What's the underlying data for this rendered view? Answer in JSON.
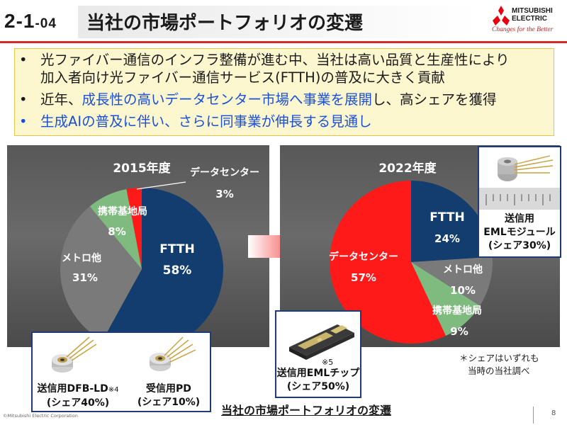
{
  "header": {
    "section_main": "2-1",
    "section_sub": "-04",
    "title": "当社の市場ポートフォリオの変遷",
    "logo_name_line1": "MITSUBISHI",
    "logo_name_line2": "ELECTRIC",
    "logo_tagline": "Changes for the Better",
    "accent_color": "#d62a2a"
  },
  "bullets": [
    {
      "text": "光ファイバー通信のインフラ整備が進む中、当社は高い品質と生産性により",
      "color": "#1a1a1a"
    },
    {
      "text": "加入者向け光ファイバー通信サービス(FTTH)の普及に大きく貢献",
      "color": "#1a1a1a",
      "continuation": true
    },
    {
      "pre": "近年、",
      "highlight": "成長性の高いデータセンター市場へ事業を展開",
      "post": "し、高シェアを獲得"
    },
    {
      "text": "生成AIの普及に伴い、さらに同事業が伸長する見通し",
      "color": "#1a4fd6"
    }
  ],
  "chart_data": [
    {
      "type": "pie",
      "title": "2015年度",
      "slices": [
        {
          "label": "FTTH",
          "value": 58,
          "display": "58%",
          "color": "#123d6e"
        },
        {
          "label": "メトロ他",
          "value": 31,
          "display": "31%",
          "color": "#7a7a7a"
        },
        {
          "label": "携帯基地局",
          "value": 8,
          "display": "8%",
          "color": "#7fba7f"
        },
        {
          "label": "データセンター",
          "value": 3,
          "display": "3%",
          "color": "#ff1a1a"
        }
      ]
    },
    {
      "type": "pie",
      "title": "2022年度",
      "slices": [
        {
          "label": "FTTH",
          "value": 24,
          "display": "24%",
          "color": "#123d6e"
        },
        {
          "label": "メトロ他",
          "value": 10,
          "display": "10%",
          "color": "#7a7a7a"
        },
        {
          "label": "携帯基地局",
          "value": 9,
          "display": "9%",
          "color": "#7fba7f"
        },
        {
          "label": "データセンター",
          "value": 57,
          "display": "57%",
          "color": "#ff1a1a"
        }
      ]
    }
  ],
  "products": {
    "eml_module": {
      "line1": "送信用",
      "line2": "EMLモジュール",
      "line3": "(シェア30%)"
    },
    "eml_chip": {
      "note": "※5",
      "line1": "送信用EMLチップ",
      "line2": "(シェア50%)"
    },
    "dfb_ld": {
      "line1": "送信用DFB-LD",
      "note": "※4",
      "line2": "(シェア40%)"
    },
    "pd": {
      "line1": "受信用PD",
      "line2": "(シェア10%)"
    }
  },
  "note": {
    "line1": "＊シェアはいずれも",
    "line2": "当時の当社調べ"
  },
  "footer": {
    "copyright": "©Mitsubishi Electric Corporation",
    "title": "当社の市場ポートフォリオの変遷",
    "page": "8"
  }
}
